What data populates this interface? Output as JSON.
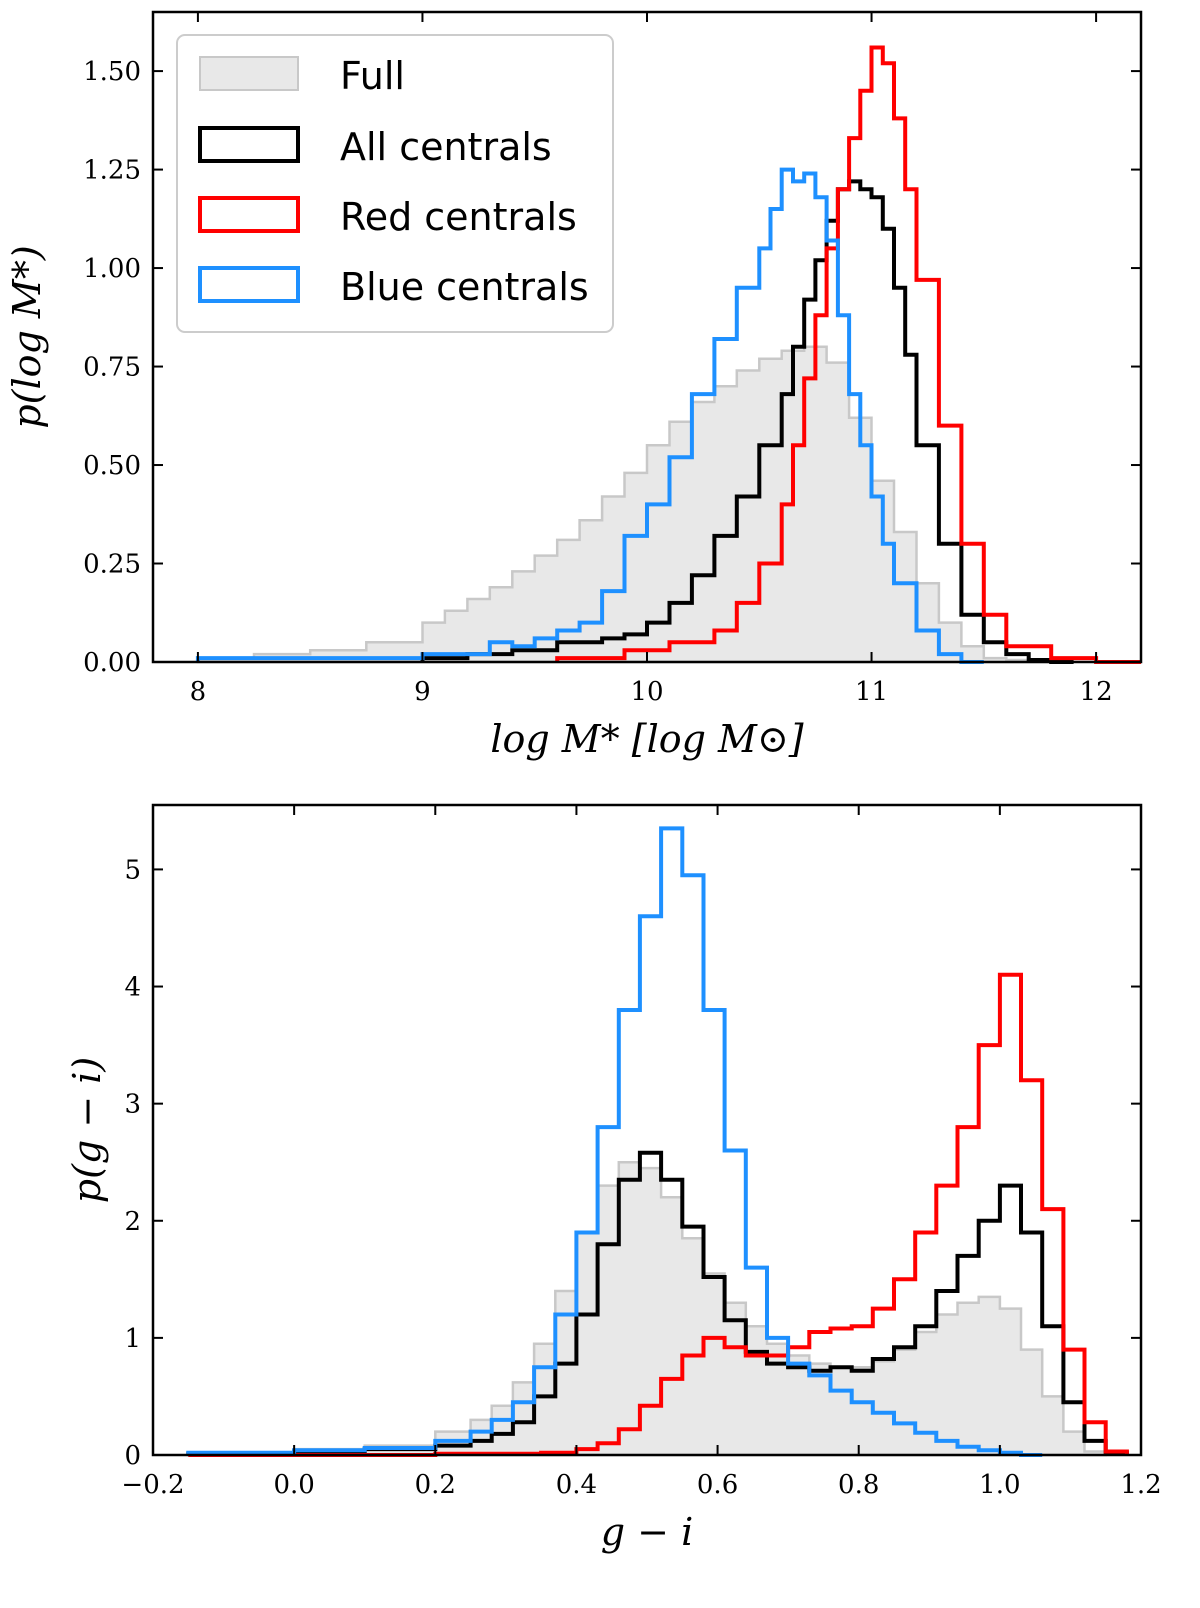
{
  "figure": {
    "title": ""
  },
  "chart_data": [
    {
      "type": "step-histogram",
      "id": "mass",
      "xlabel": "log M* [log M⊙]",
      "ylabel": "p(log M*)",
      "xlim": [
        7.8,
        12.2
      ],
      "ylim": [
        0,
        1.65
      ],
      "xticks": [
        8,
        9,
        10,
        11,
        12
      ],
      "xtick_labels": [
        "8",
        "9",
        "10",
        "11",
        "12"
      ],
      "yticks": [
        0,
        0.25,
        0.5,
        0.75,
        1.0,
        1.25,
        1.5
      ],
      "ytick_labels": [
        "0.00",
        "0.25",
        "0.50",
        "0.75",
        "1.00",
        "1.25",
        "1.50"
      ],
      "legend": {
        "position": "upper-left",
        "entries": [
          {
            "label": "Full",
            "style": "fill",
            "color": "#e8e8e8",
            "edge": "#c8c8c8"
          },
          {
            "label": "All centrals",
            "style": "line",
            "color": "#000000"
          },
          {
            "label": "Red centrals",
            "style": "line",
            "color": "#ff0000"
          },
          {
            "label": "Blue centrals",
            "style": "line",
            "color": "#1e90ff"
          }
        ]
      },
      "series": [
        {
          "name": "Full",
          "style": "fill",
          "color": "#e8e8e8",
          "edge": "#c8c8c8",
          "x": [
            8.0,
            8.25,
            8.5,
            8.75,
            9.0,
            9.1,
            9.2,
            9.3,
            9.4,
            9.5,
            9.6,
            9.7,
            9.8,
            9.9,
            10.0,
            10.1,
            10.2,
            10.3,
            10.4,
            10.5,
            10.6,
            10.7,
            10.8,
            10.9,
            11.0,
            11.1,
            11.2,
            11.3,
            11.4,
            11.5,
            11.6,
            11.7,
            11.8
          ],
          "y": [
            0.01,
            0.02,
            0.03,
            0.05,
            0.1,
            0.13,
            0.16,
            0.19,
            0.23,
            0.27,
            0.31,
            0.36,
            0.42,
            0.48,
            0.55,
            0.61,
            0.66,
            0.7,
            0.74,
            0.77,
            0.79,
            0.8,
            0.76,
            0.62,
            0.46,
            0.33,
            0.2,
            0.1,
            0.04,
            0.01,
            0.005,
            0.0,
            0.0
          ]
        },
        {
          "name": "All centrals",
          "style": "line",
          "color": "#000000",
          "x": [
            9.0,
            9.2,
            9.4,
            9.6,
            9.8,
            9.9,
            10.0,
            10.1,
            10.2,
            10.3,
            10.4,
            10.5,
            10.6,
            10.65,
            10.7,
            10.75,
            10.8,
            10.85,
            10.9,
            10.95,
            11.0,
            11.05,
            11.1,
            11.15,
            11.2,
            11.3,
            11.4,
            11.5,
            11.6,
            11.7,
            11.8
          ],
          "y": [
            0.01,
            0.02,
            0.03,
            0.05,
            0.06,
            0.07,
            0.1,
            0.15,
            0.22,
            0.32,
            0.42,
            0.55,
            0.68,
            0.8,
            0.92,
            1.02,
            1.12,
            1.2,
            1.22,
            1.2,
            1.18,
            1.1,
            0.95,
            0.78,
            0.55,
            0.3,
            0.12,
            0.05,
            0.02,
            0.005,
            0.0
          ]
        },
        {
          "name": "Red centrals",
          "style": "line",
          "color": "#ff0000",
          "x": [
            9.6,
            9.9,
            10.1,
            10.3,
            10.4,
            10.5,
            10.6,
            10.65,
            10.7,
            10.75,
            10.8,
            10.85,
            10.9,
            10.95,
            11.0,
            11.05,
            11.1,
            11.15,
            11.2,
            11.3,
            11.4,
            11.5,
            11.6,
            11.8,
            12.0
          ],
          "y": [
            0.01,
            0.03,
            0.05,
            0.08,
            0.15,
            0.25,
            0.4,
            0.55,
            0.72,
            0.88,
            1.05,
            1.2,
            1.33,
            1.45,
            1.56,
            1.52,
            1.38,
            1.2,
            0.97,
            0.6,
            0.3,
            0.12,
            0.04,
            0.01,
            0.0
          ]
        },
        {
          "name": "Blue centrals",
          "style": "line",
          "color": "#1e90ff",
          "x": [
            8.0,
            9.0,
            9.3,
            9.4,
            9.5,
            9.6,
            9.7,
            9.8,
            9.9,
            10.0,
            10.1,
            10.2,
            10.3,
            10.4,
            10.5,
            10.55,
            10.6,
            10.65,
            10.7,
            10.75,
            10.8,
            10.85,
            10.9,
            10.95,
            11.0,
            11.05,
            11.1,
            11.2,
            11.3,
            11.4
          ],
          "y": [
            0.01,
            0.02,
            0.05,
            0.04,
            0.06,
            0.08,
            0.1,
            0.18,
            0.32,
            0.4,
            0.52,
            0.68,
            0.82,
            0.95,
            1.05,
            1.15,
            1.25,
            1.22,
            1.24,
            1.18,
            1.07,
            0.88,
            0.68,
            0.55,
            0.42,
            0.3,
            0.2,
            0.08,
            0.02,
            0.0
          ]
        }
      ]
    },
    {
      "type": "step-histogram",
      "id": "color",
      "xlabel": "g − i",
      "ylabel": "p(g − i)",
      "xlim": [
        -0.2,
        1.2
      ],
      "ylim": [
        0,
        5.55
      ],
      "xticks": [
        -0.2,
        0.0,
        0.2,
        0.4,
        0.6,
        0.8,
        1.0,
        1.2
      ],
      "xtick_labels": [
        "−0.2",
        "0.0",
        "0.2",
        "0.4",
        "0.6",
        "0.8",
        "1.0",
        "1.2"
      ],
      "yticks": [
        0,
        1,
        2,
        3,
        4,
        5
      ],
      "ytick_labels": [
        "0",
        "1",
        "2",
        "3",
        "4",
        "5"
      ],
      "series": [
        {
          "name": "Full",
          "style": "fill",
          "color": "#e8e8e8",
          "edge": "#c8c8c8",
          "x": [
            -0.15,
            0.0,
            0.1,
            0.2,
            0.25,
            0.28,
            0.31,
            0.34,
            0.37,
            0.4,
            0.43,
            0.46,
            0.49,
            0.52,
            0.55,
            0.58,
            0.61,
            0.64,
            0.67,
            0.7,
            0.73,
            0.76,
            0.79,
            0.82,
            0.85,
            0.88,
            0.91,
            0.94,
            0.97,
            1.0,
            1.03,
            1.06,
            1.09,
            1.12
          ],
          "y": [
            0.01,
            0.05,
            0.08,
            0.2,
            0.3,
            0.42,
            0.62,
            0.95,
            1.4,
            1.9,
            2.3,
            2.5,
            2.45,
            2.2,
            1.85,
            1.55,
            1.3,
            1.1,
            0.95,
            0.85,
            0.78,
            0.75,
            0.75,
            0.8,
            0.9,
            1.05,
            1.2,
            1.3,
            1.35,
            1.25,
            0.9,
            0.5,
            0.2,
            0.03
          ]
        },
        {
          "name": "All centrals",
          "style": "line",
          "color": "#000000",
          "x": [
            -0.15,
            0.0,
            0.1,
            0.2,
            0.25,
            0.28,
            0.31,
            0.34,
            0.37,
            0.4,
            0.43,
            0.46,
            0.49,
            0.52,
            0.55,
            0.58,
            0.61,
            0.64,
            0.67,
            0.7,
            0.73,
            0.76,
            0.79,
            0.82,
            0.85,
            0.88,
            0.91,
            0.94,
            0.97,
            1.0,
            1.03,
            1.06,
            1.09,
            1.12,
            1.15
          ],
          "y": [
            0.01,
            0.03,
            0.05,
            0.08,
            0.12,
            0.18,
            0.28,
            0.5,
            0.78,
            1.2,
            1.8,
            2.35,
            2.58,
            2.35,
            1.95,
            1.52,
            1.15,
            0.88,
            0.78,
            0.75,
            0.72,
            0.75,
            0.72,
            0.82,
            0.92,
            1.1,
            1.4,
            1.7,
            2.0,
            2.3,
            1.9,
            1.1,
            0.45,
            0.12,
            0.02
          ]
        },
        {
          "name": "Red centrals",
          "style": "line",
          "color": "#ff0000",
          "x": [
            -0.15,
            0.0,
            0.2,
            0.35,
            0.4,
            0.43,
            0.46,
            0.49,
            0.52,
            0.55,
            0.58,
            0.61,
            0.64,
            0.67,
            0.7,
            0.73,
            0.76,
            0.79,
            0.82,
            0.85,
            0.88,
            0.91,
            0.94,
            0.97,
            1.0,
            1.03,
            1.06,
            1.09,
            1.12,
            1.15
          ],
          "y": [
            0.0,
            0.0,
            0.01,
            0.02,
            0.05,
            0.1,
            0.22,
            0.42,
            0.65,
            0.85,
            1.0,
            0.92,
            0.85,
            0.85,
            0.92,
            1.05,
            1.08,
            1.1,
            1.25,
            1.5,
            1.9,
            2.3,
            2.8,
            3.5,
            4.1,
            3.2,
            2.1,
            0.9,
            0.28,
            0.03
          ]
        },
        {
          "name": "Blue centrals",
          "style": "line",
          "color": "#1e90ff",
          "x": [
            -0.15,
            0.0,
            0.1,
            0.2,
            0.25,
            0.28,
            0.31,
            0.34,
            0.37,
            0.4,
            0.43,
            0.46,
            0.49,
            0.52,
            0.55,
            0.58,
            0.61,
            0.64,
            0.67,
            0.7,
            0.73,
            0.76,
            0.79,
            0.82,
            0.85,
            0.88,
            0.91,
            0.94,
            0.97,
            1.0,
            1.03
          ],
          "y": [
            0.02,
            0.04,
            0.06,
            0.12,
            0.2,
            0.3,
            0.45,
            0.75,
            1.2,
            1.9,
            2.8,
            3.8,
            4.6,
            5.35,
            4.95,
            3.8,
            2.6,
            1.6,
            1.0,
            0.78,
            0.68,
            0.55,
            0.45,
            0.36,
            0.27,
            0.19,
            0.12,
            0.07,
            0.04,
            0.02,
            0.0
          ]
        }
      ]
    }
  ]
}
